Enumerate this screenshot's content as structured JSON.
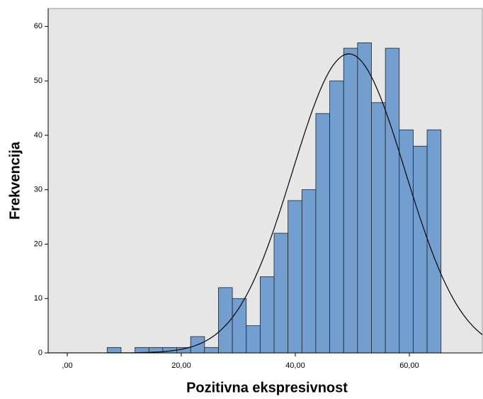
{
  "chart_data": {
    "type": "histogram",
    "xlabel": "Pozitivna ekspresivnost",
    "ylabel": "Frekvencija",
    "bins": [
      7.0,
      9.44,
      11.88,
      14.32,
      16.76,
      19.2,
      21.64,
      24.08,
      26.52,
      28.96,
      31.4,
      33.84,
      36.28,
      38.72,
      41.16,
      43.6,
      46.04,
      48.48,
      50.92,
      53.36,
      55.8,
      58.24,
      60.68,
      63.12,
      65.56
    ],
    "values": [
      1,
      0,
      1,
      1,
      1,
      1,
      3,
      1,
      12,
      10,
      5,
      14,
      22,
      28,
      30,
      44,
      50,
      56,
      57,
      46,
      56,
      41,
      38,
      41
    ],
    "color": "#729fcf",
    "normal_curve": {
      "mean": 49.4,
      "sd": 9.9
    },
    "xlim": [
      -3.35,
      72.8
    ],
    "ylim": [
      0,
      63.3
    ],
    "xticks": [
      {
        "value": 0,
        "label": ",00"
      },
      {
        "value": 20,
        "label": "20,00"
      },
      {
        "value": 40,
        "label": "40,00"
      },
      {
        "value": 60,
        "label": "60,00"
      }
    ],
    "yticks": [
      0,
      10,
      20,
      30,
      40,
      50,
      60
    ]
  }
}
